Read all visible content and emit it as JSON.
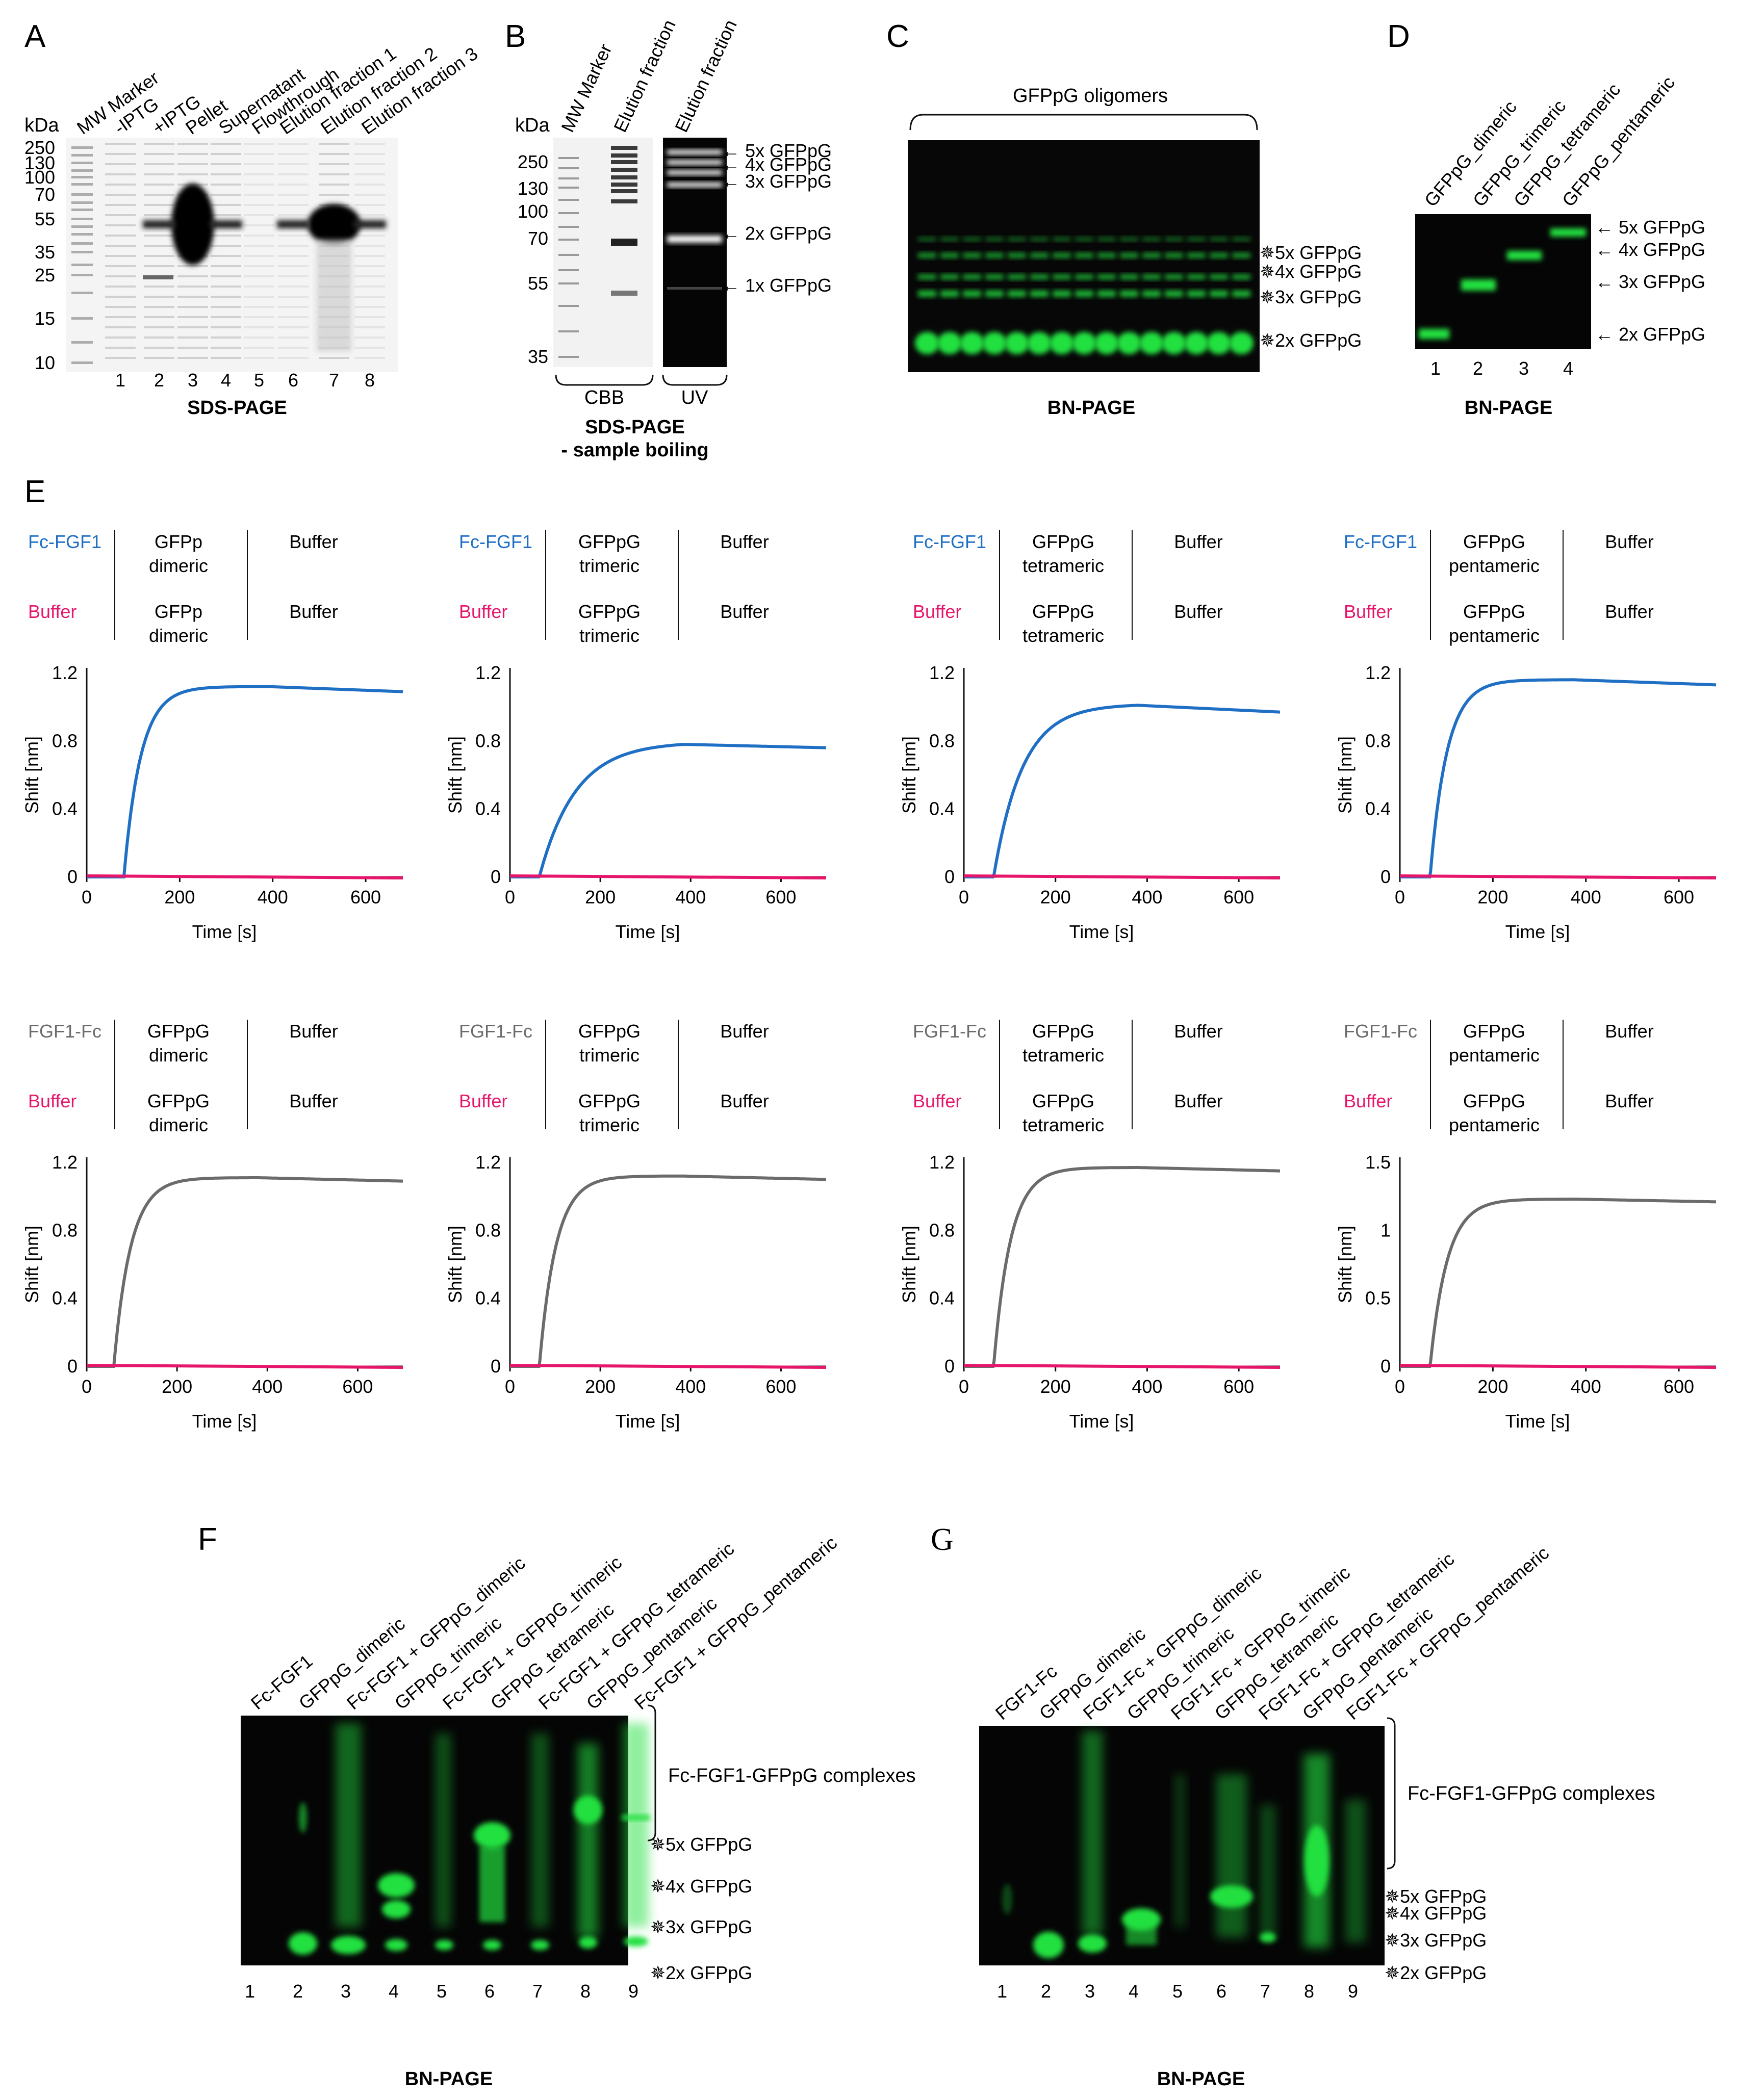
{
  "colors": {
    "fc_fgf1": "#1f6fc4",
    "fgf1_fc": "#6b6b6b",
    "buffer": "#e6176b",
    "gel_green": "#22e040",
    "gel_bg": "#0a0a0a"
  },
  "panelA": {
    "letter": "A",
    "kda": "kDa",
    "mw": [
      "250",
      "130",
      "100",
      "70",
      "55",
      "35",
      "25",
      "15",
      "10"
    ],
    "lanes": [
      "MW Marker",
      "-IPTG",
      "+IPTG",
      "Pellet",
      "Supernatant",
      "Flowthrough",
      "Elution fraction 1",
      "Elution fraction 2",
      "Elution fraction 3"
    ],
    "nums": [
      "1",
      "2",
      "3",
      "4",
      "5",
      "6",
      "7",
      "8"
    ],
    "caption": "SDS-PAGE"
  },
  "panelB": {
    "letter": "B",
    "kda": "kDa",
    "mw": [
      "250",
      "130",
      "100",
      "70",
      "55",
      "35"
    ],
    "lanes": [
      "MW Marker",
      "Elution fraction",
      "Elution fraction"
    ],
    "arrows": [
      "← 5x GFPpG",
      "← 4x GFPpG",
      "← 3x GFPpG",
      "← 2x GFPpG",
      "← 1x GFPpG"
    ],
    "cbb": "CBB",
    "uv": "UV",
    "caption1": "SDS-PAGE",
    "caption2": "- sample boiling"
  },
  "panelC": {
    "letter": "C",
    "header": "GFPpG oligomers",
    "arrows": [
      "✵5x GFPpG",
      "✵4x GFPpG",
      "✵3x GFPpG",
      "✵2x GFPpG"
    ],
    "caption": "BN-PAGE"
  },
  "panelD": {
    "letter": "D",
    "lanes": [
      "GFPpG_dimeric",
      "GFPpG_trimeric",
      "GFPpG_tetrameric",
      "GFPpG_pentameric"
    ],
    "arrows": [
      "← 5x GFPpG",
      "← 4x GFPpG",
      "← 3x GFPpG",
      "← 2x GFPpG"
    ],
    "nums": [
      "1",
      "2",
      "3",
      "4"
    ],
    "caption": "BN-PAGE"
  },
  "panelE": {
    "letter": "E",
    "ylabel": "Shift [nm]",
    "xlabel": "Time [s]",
    "xticks": [
      "0",
      "200",
      "400",
      "600"
    ],
    "top_rows": [
      {
        "ligand": "Fc-FGF1",
        "buffer": "Buffer",
        "analyte1": "GFPp",
        "analyte2": "dimeric",
        "analyte3": "GFPp",
        "analyte4": "dimeric",
        "col3a": "Buffer",
        "col3b": "Buffer"
      },
      {
        "ligand": "Fc-FGF1",
        "buffer": "Buffer",
        "analyte1": "GFPpG",
        "analyte2": "trimeric",
        "analyte3": "GFPpG",
        "analyte4": "trimeric",
        "col3a": "Buffer",
        "col3b": "Buffer"
      },
      {
        "ligand": "Fc-FGF1",
        "buffer": "Buffer",
        "analyte1": "GFPpG",
        "analyte2": "tetrameric",
        "analyte3": "GFPpG",
        "analyte4": "tetrameric",
        "col3a": "Buffer",
        "col3b": "Buffer"
      },
      {
        "ligand": "Fc-FGF1",
        "buffer": "Buffer",
        "analyte1": "GFPpG",
        "analyte2": "pentameric",
        "analyte3": "GFPpG",
        "analyte4": "pentameric",
        "col3a": "Buffer",
        "col3b": "Buffer"
      }
    ],
    "bottom_rows": [
      {
        "ligand": "FGF1-Fc",
        "buffer": "Buffer",
        "analyte1": "GFPpG",
        "analyte2": "dimeric",
        "analyte3": "GFPpG",
        "analyte4": "dimeric",
        "col3a": "Buffer",
        "col3b": "Buffer"
      },
      {
        "ligand": "FGF1-Fc",
        "buffer": "Buffer",
        "analyte1": "GFPpG",
        "analyte2": "trimeric",
        "analyte3": "GFPpG",
        "analyte4": "trimeric",
        "col3a": "Buffer",
        "col3b": "Buffer"
      },
      {
        "ligand": "FGF1-Fc",
        "buffer": "Buffer",
        "analyte1": "GFPpG",
        "analyte2": "tetrameric",
        "analyte3": "GFPpG",
        "analyte4": "tetrameric",
        "col3a": "Buffer",
        "col3b": "Buffer"
      },
      {
        "ligand": "FGF1-Fc",
        "buffer": "Buffer",
        "analyte1": "GFPpG",
        "analyte2": "pentameric",
        "analyte3": "GFPpG",
        "analyte4": "pentameric",
        "col3a": "Buffer",
        "col3b": "Buffer"
      }
    ]
  },
  "chart_data": [
    {
      "type": "line",
      "ylabel": "Shift [nm]",
      "xlabel": "Time [s]",
      "xlim": [
        0,
        680
      ],
      "ylim": [
        0,
        1.2
      ],
      "yticks": [
        "1.2",
        "0.8",
        "0.4",
        "0"
      ],
      "assoc_start": 80,
      "dissoc_start": 390,
      "series": [
        {
          "name": "Fc-FGF1",
          "x": [
            0,
            80,
            100,
            150,
            200,
            300,
            390,
            500,
            680
          ],
          "y": [
            0,
            0,
            0.72,
            0.98,
            1.05,
            1.1,
            1.12,
            1.11,
            1.09
          ]
        },
        {
          "name": "Buffer",
          "x": [
            0,
            680
          ],
          "y": [
            0,
            0
          ]
        }
      ]
    },
    {
      "type": "line",
      "ylabel": "Shift [nm]",
      "xlabel": "Time [s]",
      "xlim": [
        0,
        700
      ],
      "ylim": [
        0,
        1.2
      ],
      "yticks": [
        "1.2",
        "0.8",
        "0.4",
        "0"
      ],
      "assoc_start": 65,
      "dissoc_start": 385,
      "series": [
        {
          "name": "Fc-FGF1",
          "x": [
            0,
            65,
            100,
            150,
            200,
            300,
            385,
            500,
            700
          ],
          "y": [
            0,
            0,
            0.28,
            0.45,
            0.56,
            0.7,
            0.78,
            0.77,
            0.76
          ]
        },
        {
          "name": "Buffer",
          "x": [
            0,
            700
          ],
          "y": [
            0,
            0
          ]
        }
      ]
    },
    {
      "type": "line",
      "ylabel": "Shift [nm]",
      "xlabel": "Time [s]",
      "xlim": [
        0,
        690
      ],
      "ylim": [
        0,
        1.2
      ],
      "yticks": [
        "1.2",
        "0.8",
        "0.4",
        "0"
      ],
      "assoc_start": 65,
      "dissoc_start": 380,
      "series": [
        {
          "name": "Fc-FGF1",
          "x": [
            0,
            65,
            100,
            150,
            200,
            300,
            380,
            500,
            690
          ],
          "y": [
            0,
            0,
            0.4,
            0.62,
            0.76,
            0.92,
            1.01,
            0.98,
            0.97
          ]
        },
        {
          "name": "Buffer",
          "x": [
            0,
            690
          ],
          "y": [
            0,
            0
          ]
        }
      ]
    },
    {
      "type": "line",
      "ylabel": "Shift [nm]",
      "xlabel": "Time [s]",
      "xlim": [
        0,
        680
      ],
      "ylim": [
        0,
        1.2
      ],
      "yticks": [
        "1.2",
        "0.8",
        "0.4",
        "0"
      ],
      "assoc_start": 65,
      "dissoc_start": 375,
      "series": [
        {
          "name": "Fc-FGF1",
          "x": [
            0,
            65,
            100,
            150,
            200,
            300,
            375,
            500,
            680
          ],
          "y": [
            0,
            0,
            0.52,
            0.78,
            0.92,
            1.08,
            1.16,
            1.14,
            1.13
          ]
        },
        {
          "name": "Buffer",
          "x": [
            0,
            680
          ],
          "y": [
            0,
            0
          ]
        }
      ]
    },
    {
      "type": "line",
      "ylabel": "Shift [nm]",
      "xlabel": "Time [s]",
      "xlim": [
        0,
        700
      ],
      "ylim": [
        0,
        1.2
      ],
      "yticks": [
        "1.2",
        "0.8",
        "0.4",
        "0"
      ],
      "assoc_start": 60,
      "dissoc_start": 380,
      "series": [
        {
          "name": "FGF1-Fc",
          "x": [
            0,
            60,
            80,
            120,
            200,
            300,
            380,
            500,
            700
          ],
          "y": [
            0,
            0,
            0.7,
            0.92,
            1.04,
            1.09,
            1.11,
            1.1,
            1.09
          ]
        },
        {
          "name": "Buffer",
          "x": [
            0,
            700
          ],
          "y": [
            0,
            0
          ]
        }
      ]
    },
    {
      "type": "line",
      "ylabel": "Shift [nm]",
      "xlabel": "Time [s]",
      "xlim": [
        0,
        700
      ],
      "ylim": [
        0,
        1.2
      ],
      "yticks": [
        "1.2",
        "0.8",
        "0.4",
        "0"
      ],
      "assoc_start": 65,
      "dissoc_start": 380,
      "series": [
        {
          "name": "FGF1-Fc",
          "x": [
            0,
            65,
            85,
            120,
            200,
            300,
            380,
            500,
            700
          ],
          "y": [
            0,
            0,
            0.68,
            0.9,
            1.03,
            1.09,
            1.12,
            1.11,
            1.1
          ]
        },
        {
          "name": "Buffer",
          "x": [
            0,
            700
          ],
          "y": [
            0,
            0
          ]
        }
      ]
    },
    {
      "type": "line",
      "ylabel": "Shift [nm]",
      "xlabel": "Time [s]",
      "xlim": [
        0,
        690
      ],
      "ylim": [
        0,
        1.2
      ],
      "yticks": [
        "1.2",
        "0.8",
        "0.4",
        "0"
      ],
      "assoc_start": 65,
      "dissoc_start": 380,
      "series": [
        {
          "name": "FGF1-Fc",
          "x": [
            0,
            65,
            85,
            120,
            200,
            300,
            380,
            500,
            690
          ],
          "y": [
            0,
            0,
            0.75,
            0.98,
            1.1,
            1.15,
            1.17,
            1.16,
            1.15
          ]
        },
        {
          "name": "Buffer",
          "x": [
            0,
            690
          ],
          "y": [
            0,
            0
          ]
        }
      ]
    },
    {
      "type": "line",
      "ylabel": "Shift [nm]",
      "xlabel": "Time [s]",
      "xlim": [
        0,
        680
      ],
      "ylim": [
        0,
        1.5
      ],
      "yticks": [
        "1.5",
        "1",
        "0.5",
        "0"
      ],
      "assoc_start": 65,
      "dissoc_start": 380,
      "series": [
        {
          "name": "FGF1-Fc",
          "x": [
            0,
            65,
            85,
            120,
            200,
            300,
            380,
            500,
            680
          ],
          "y": [
            0,
            0,
            0.8,
            1.05,
            1.16,
            1.21,
            1.23,
            1.22,
            1.21
          ]
        },
        {
          "name": "Buffer",
          "x": [
            0,
            680
          ],
          "y": [
            0,
            0
          ]
        }
      ]
    }
  ],
  "panelF": {
    "letter": "F",
    "lanes": [
      "Fc-FGF1",
      "GFPpG_dimeric",
      "Fc-FGF1 + GFPpG_dimeric",
      "GFPpG_trimeric",
      "Fc-FGF1 + GFPpG_trimeric",
      "GFPpG_tetrameric",
      "Fc-FGF1 + GFPpG_tetrameric",
      "GFPpG_pentameric",
      "Fc-FGF1 + GFPpG_pentameric"
    ],
    "complex": "Fc-FGF1-GFPpG complexes",
    "arrows": [
      "✵5x GFPpG",
      "✵4x GFPpG",
      "✵3x GFPpG",
      "✵2x GFPpG"
    ],
    "nums": [
      "1",
      "2",
      "3",
      "4",
      "5",
      "6",
      "7",
      "8",
      "9"
    ],
    "caption": "BN-PAGE"
  },
  "panelG": {
    "letter": "G",
    "lanes": [
      "FGF1-Fc",
      "GFPpG_dimeric",
      "FGF1-Fc + GFPpG_dimeric",
      "GFPpG_trimeric",
      "FGF1-Fc + GFPpG_trimeric",
      "GFPpG_tetrameric",
      "FGF1-Fc + GFPpG_tetrameric",
      "GFPpG_pentameric",
      "FGF1-Fc + GFPpG_pentameric"
    ],
    "complex": "Fc-FGF1-GFPpG complexes",
    "arrows": [
      "✵5x GFPpG",
      "✵4x GFPpG",
      "✵3x GFPpG",
      "✵2x GFPpG"
    ],
    "nums": [
      "1",
      "2",
      "3",
      "4",
      "5",
      "6",
      "7",
      "8",
      "9"
    ],
    "caption": "BN-PAGE"
  }
}
